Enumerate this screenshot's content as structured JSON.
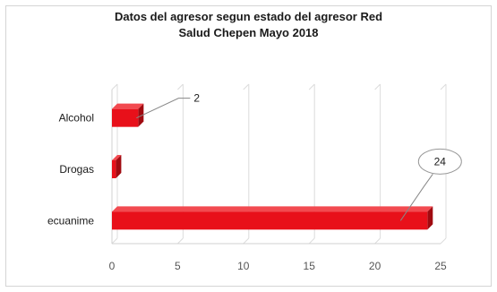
{
  "chart_data": {
    "type": "bar",
    "orientation": "horizontal",
    "title": [
      "Datos del agresor segun estado del agresor  Red",
      "Salud Chepen  Mayo 2018"
    ],
    "categories": [
      "Alcohol",
      "Drogas",
      "ecuanime"
    ],
    "values": [
      2,
      0.3,
      24
    ],
    "data_labels": [
      "2",
      "",
      "24"
    ],
    "xlim": [
      0,
      25
    ],
    "xticks": [
      "0",
      "5",
      "10",
      "15",
      "20",
      "25"
    ],
    "grid": "vertical",
    "legend": "none",
    "bar_color": "#e8101a",
    "bar_side_color": "#a00a10"
  }
}
